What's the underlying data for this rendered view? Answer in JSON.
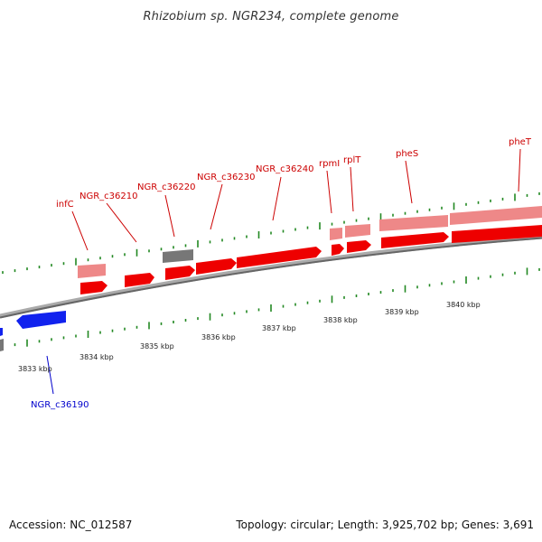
{
  "title": "Rhizobium sp. NGR234, complete genome",
  "footer": {
    "accession": "Accession: NC_012587",
    "stats": "Topology: circular; Length: 3,925,702 bp; Genes: 3,691"
  },
  "colors": {
    "forward_cds": "#ee0000",
    "forward_rna": "#ee8888",
    "reverse_cds": "#1122ee",
    "other_feature": "#777777",
    "backbone": "#888888",
    "ticks": "#228822"
  },
  "scale": {
    "labels": [
      "3833 kbp",
      "3834 kbp",
      "3835 kbp",
      "3836 kbp",
      "3837 kbp",
      "3838 kbp",
      "3839 kbp",
      "3840 kbp"
    ]
  },
  "genes": [
    {
      "label": "infC"
    },
    {
      "label": "NGR_c36210"
    },
    {
      "label": "NGR_c36220"
    },
    {
      "label": "NGR_c36230"
    },
    {
      "label": "NGR_c36240"
    },
    {
      "label": "rpmI"
    },
    {
      "label": "rplT"
    },
    {
      "label": "pheS"
    },
    {
      "label": "pheT"
    },
    {
      "label": "NGR_c36190"
    }
  ]
}
